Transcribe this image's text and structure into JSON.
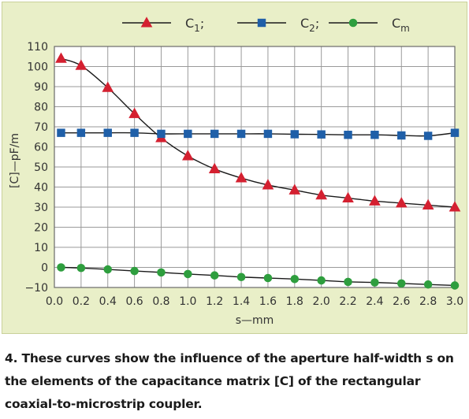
{
  "chart_data": {
    "type": "line",
    "xlabel": "s—mm",
    "ylabel": "[C]—pF/m",
    "xlim": [
      0.0,
      3.0
    ],
    "ylim": [
      -10,
      110
    ],
    "xticks": [
      "0.0",
      "0.2",
      "0.4",
      "0.6",
      "0.8",
      "1.0",
      "1.2",
      "1.4",
      "1.6",
      "1.8",
      "2.0",
      "2.2",
      "2.4",
      "2.6",
      "2.8",
      "3.0"
    ],
    "yticks": [
      "110",
      "100",
      "90",
      "80",
      "70",
      "60",
      "50",
      "40",
      "30",
      "20",
      "10",
      "0",
      "−10"
    ],
    "grid": true,
    "legend_position": "top",
    "x": [
      0.05,
      0.2,
      0.4,
      0.6,
      0.8,
      1.0,
      1.2,
      1.4,
      1.6,
      1.8,
      2.0,
      2.2,
      2.4,
      2.6,
      2.8,
      3.0
    ],
    "series": [
      {
        "name": "C",
        "subscript": "1",
        "suffix": ";",
        "color": "#d42030",
        "marker": "triangle",
        "values": [
          104,
          100.5,
          89.5,
          76.5,
          64.5,
          55.5,
          49,
          44.5,
          41,
          38.5,
          36,
          34.5,
          33,
          32,
          31,
          30
        ]
      },
      {
        "name": "C",
        "subscript": "2",
        "suffix": ";",
        "color": "#1f5fa8",
        "marker": "square",
        "values": [
          67,
          67,
          67,
          67,
          66.5,
          66.5,
          66.5,
          66.5,
          66.5,
          66.3,
          66.2,
          66,
          66,
          65.7,
          65.5,
          67
        ]
      },
      {
        "name": "C",
        "subscript": "m",
        "suffix": "",
        "color": "#2e9e3e",
        "marker": "circle",
        "values": [
          0,
          -0.3,
          -1,
          -1.8,
          -2.5,
          -3.3,
          -4,
          -4.8,
          -5.3,
          -5.8,
          -6.5,
          -7.2,
          -7.5,
          -8,
          -8.5,
          -9
        ]
      }
    ],
    "colors": {
      "panel_background": "#e9efc8",
      "plot_background": "#ffffff",
      "grid": "#9a9a9a",
      "curve": "#1a1a1a"
    }
  },
  "caption": "4. These curves show the influence of the aperture half-width s on the elements of the capacitance matrix [C] of the rectangular coaxial-to-microstrip coupler."
}
